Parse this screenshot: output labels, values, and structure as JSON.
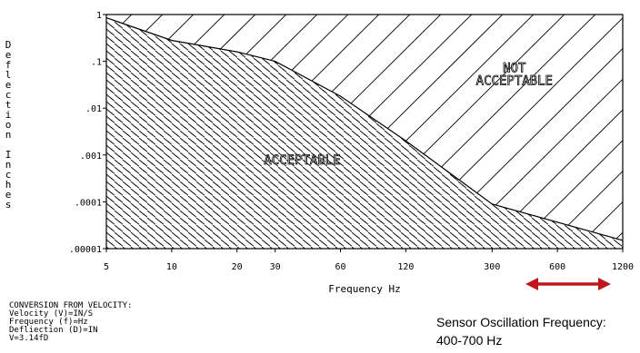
{
  "chart_data": {
    "type": "area",
    "xlabel": "Frequency Hz",
    "ylabel": "Deflection Inches",
    "x_scale": "log",
    "y_scale": "log",
    "xlim": [
      5,
      1200
    ],
    "ylim": [
      1e-05,
      1
    ],
    "x_ticks": [
      "5",
      "10",
      "20",
      "30",
      "60",
      "120",
      "300",
      "600",
      "1200"
    ],
    "x_tick_values": [
      5,
      10,
      20,
      30,
      60,
      120,
      300,
      600,
      1200
    ],
    "y_ticks": [
      "1",
      ".1",
      ".01",
      ".001",
      ".0001",
      ".00001"
    ],
    "y_tick_values": [
      1,
      0.1,
      0.01,
      0.001,
      0.0001,
      1e-05
    ],
    "boundary": {
      "x": [
        5,
        10,
        20,
        30,
        60,
        120,
        300,
        1200
      ],
      "y": [
        0.85,
        0.28,
        0.16,
        0.1,
        0.018,
        0.002,
        9e-05,
        1.5e-05
      ]
    },
    "regions": [
      {
        "name": "ACCEPTABLE",
        "position": "below-boundary",
        "pattern": "dense-dash-hatch"
      },
      {
        "name": "NOT ACCEPTABLE",
        "position": "above-boundary",
        "pattern": "diagonal-lines"
      }
    ],
    "region_label_lines": {
      "acceptable": [
        "ACCEPTABLE"
      ],
      "not_acceptable": [
        "NOT",
        "ACCEPTABLE"
      ]
    },
    "annotation": {
      "type": "double-arrow",
      "color": "#c0161a",
      "x_range": [
        400,
        700
      ]
    },
    "grid": false
  },
  "conversion": {
    "title": "CONVERSION FROM VELOCITY:",
    "lines": [
      "Velocity (V)=IN/S",
      "Frequency (f)=Hz",
      "Defliection (D)=IN",
      "V=3.14fD"
    ]
  },
  "sensor_note": {
    "line1": "Sensor Oscillation Frequency:",
    "line2": "400-700 Hz"
  }
}
